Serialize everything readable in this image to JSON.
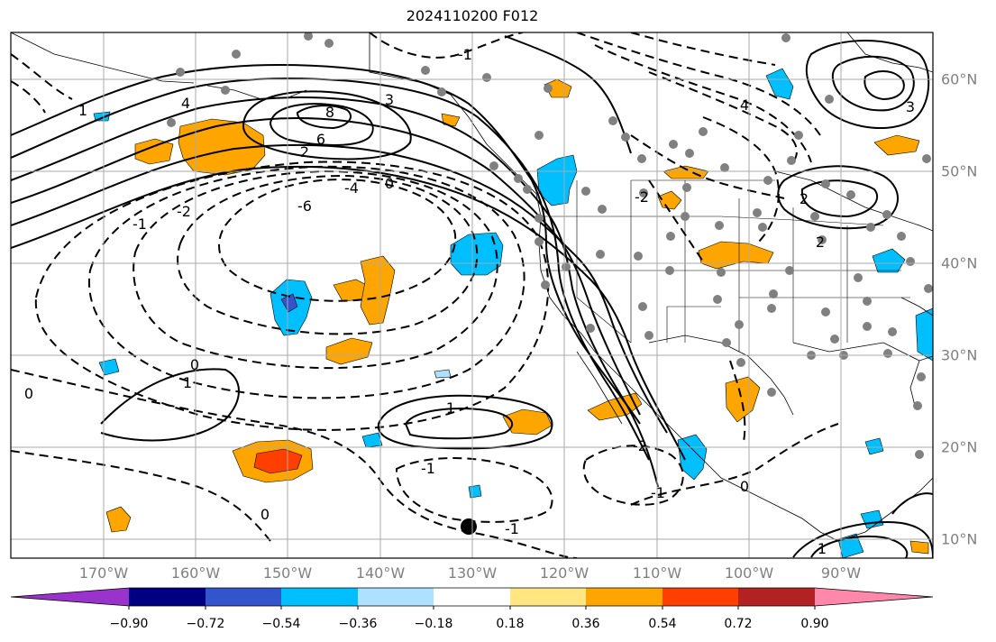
{
  "title": "2024110200 F012",
  "lon_labels": [
    "170°W",
    "160°W",
    "150°W",
    "140°W",
    "130°W",
    "120°W",
    "110°W",
    "100°W",
    "90°W"
  ],
  "lat_labels": [
    "60°N",
    "50°N",
    "40°N",
    "30°N",
    "20°N",
    "10°N"
  ],
  "colorbar": {
    "colors": [
      "#9933cc",
      "#000080",
      "#3355cc",
      "#00bfff",
      "#aee0ff",
      "#ffffff",
      "#ffe680",
      "#ffa500",
      "#ff3f00",
      "#b22222",
      "#ff88aa"
    ],
    "ticks": [
      "−0.90",
      "−0.72",
      "−0.54",
      "−0.36",
      "−0.18",
      "0.18",
      "0.36",
      "0.54",
      "0.72",
      "0.90"
    ]
  },
  "contour_labels": [
    "8",
    "6",
    "4",
    "3",
    "2",
    "1",
    "0",
    "-1",
    "-2",
    "-4",
    "-6",
    "1",
    "0",
    "-1",
    "-2",
    "-1",
    "0",
    "2",
    "4",
    "3",
    "1",
    "0",
    "2",
    "-1",
    "-2",
    "0",
    "-1",
    "1"
  ]
}
